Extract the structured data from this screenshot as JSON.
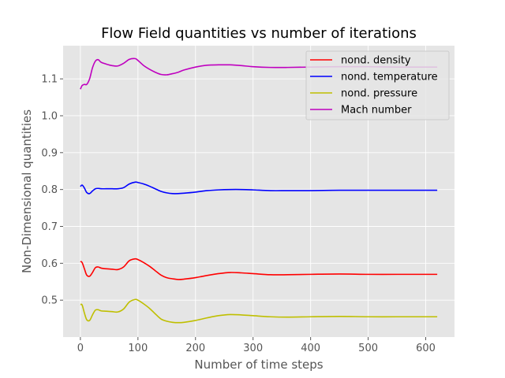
{
  "chart_data": {
    "type": "line",
    "title": "Flow Field quantities vs number of iterations",
    "xlabel": "Number of time steps",
    "ylabel": "Non-Dimensional quantities",
    "xlim": [
      -30,
      650
    ],
    "ylim": [
      0.4,
      1.19
    ],
    "xticks": [
      0,
      100,
      200,
      300,
      400,
      500,
      600
    ],
    "yticks": [
      0.5,
      0.6,
      0.7,
      0.8,
      0.9,
      1.0,
      1.1
    ],
    "grid": true,
    "legend_position": "top-right",
    "series": [
      {
        "name": "nond. density",
        "color": "#ff0000",
        "x": [
          0,
          3,
          7,
          11,
          16,
          21,
          26,
          31,
          36,
          45,
          55,
          65,
          75,
          85,
          95,
          100,
          110,
          120,
          130,
          140,
          150,
          160,
          170,
          180,
          200,
          220,
          240,
          260,
          280,
          300,
          330,
          360,
          400,
          450,
          500,
          550,
          600,
          620
        ],
        "values": [
          0.605,
          0.602,
          0.585,
          0.568,
          0.565,
          0.575,
          0.588,
          0.59,
          0.587,
          0.585,
          0.584,
          0.583,
          0.59,
          0.607,
          0.612,
          0.61,
          0.602,
          0.592,
          0.58,
          0.568,
          0.561,
          0.558,
          0.556,
          0.557,
          0.561,
          0.567,
          0.572,
          0.575,
          0.574,
          0.572,
          0.569,
          0.569,
          0.57,
          0.571,
          0.57,
          0.57,
          0.57,
          0.57
        ]
      },
      {
        "name": "nond. temperature",
        "color": "#0000ff",
        "x": [
          0,
          3,
          7,
          11,
          16,
          21,
          26,
          31,
          36,
          45,
          55,
          65,
          75,
          85,
          95,
          100,
          110,
          120,
          130,
          140,
          150,
          160,
          170,
          180,
          200,
          220,
          240,
          260,
          280,
          300,
          330,
          360,
          400,
          450,
          500,
          550,
          600,
          620
        ],
        "values": [
          0.808,
          0.812,
          0.804,
          0.792,
          0.789,
          0.796,
          0.802,
          0.803,
          0.802,
          0.802,
          0.802,
          0.802,
          0.805,
          0.815,
          0.82,
          0.819,
          0.815,
          0.809,
          0.802,
          0.795,
          0.791,
          0.789,
          0.789,
          0.79,
          0.793,
          0.797,
          0.799,
          0.8,
          0.8,
          0.799,
          0.797,
          0.797,
          0.797,
          0.798,
          0.798,
          0.798,
          0.798,
          0.798
        ]
      },
      {
        "name": "nond. pressure",
        "color": "#bfbf00",
        "x": [
          0,
          3,
          7,
          11,
          16,
          21,
          26,
          31,
          36,
          45,
          55,
          65,
          75,
          85,
          95,
          100,
          110,
          120,
          130,
          140,
          150,
          160,
          170,
          180,
          200,
          220,
          240,
          260,
          280,
          300,
          330,
          360,
          400,
          450,
          500,
          550,
          600,
          620
        ],
        "values": [
          0.488,
          0.487,
          0.465,
          0.447,
          0.445,
          0.46,
          0.473,
          0.474,
          0.471,
          0.47,
          0.469,
          0.468,
          0.476,
          0.495,
          0.502,
          0.5,
          0.49,
          0.478,
          0.463,
          0.449,
          0.443,
          0.44,
          0.439,
          0.44,
          0.445,
          0.452,
          0.458,
          0.461,
          0.46,
          0.458,
          0.455,
          0.454,
          0.455,
          0.456,
          0.455,
          0.455,
          0.455,
          0.455
        ]
      },
      {
        "name": "Mach number",
        "color": "#bf00bf",
        "x": [
          0,
          3,
          7,
          11,
          16,
          21,
          26,
          31,
          36,
          45,
          55,
          65,
          75,
          85,
          95,
          100,
          110,
          120,
          130,
          140,
          150,
          160,
          170,
          180,
          200,
          220,
          240,
          260,
          280,
          300,
          330,
          360,
          400,
          450,
          500,
          550,
          600,
          620
        ],
        "values": [
          1.072,
          1.082,
          1.085,
          1.085,
          1.1,
          1.13,
          1.148,
          1.152,
          1.145,
          1.14,
          1.136,
          1.135,
          1.142,
          1.153,
          1.155,
          1.15,
          1.136,
          1.126,
          1.118,
          1.112,
          1.111,
          1.114,
          1.118,
          1.124,
          1.132,
          1.137,
          1.138,
          1.138,
          1.136,
          1.133,
          1.131,
          1.131,
          1.132,
          1.133,
          1.133,
          1.132,
          1.132,
          1.132
        ]
      }
    ]
  }
}
